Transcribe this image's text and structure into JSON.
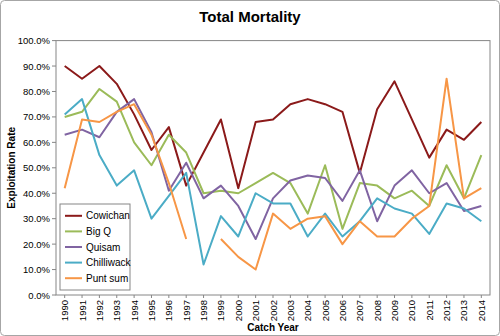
{
  "chart_data": {
    "type": "line",
    "title": "Total Mortality",
    "x_label": "Catch Year",
    "y_label": "Exploitation Rate",
    "categories": [
      "1990",
      "1991",
      "1992",
      "1993",
      "1994",
      "1995",
      "1996",
      "1997",
      "1998",
      "1999",
      "2000",
      "2001",
      "2002",
      "2003",
      "2004",
      "2005",
      "2006",
      "2007",
      "2008",
      "2009",
      "2010",
      "2011",
      "2012",
      "2013",
      "2014"
    ],
    "series": [
      {
        "name": "Cowichan",
        "color": "#8b1a1a",
        "values": [
          90,
          85,
          90,
          83,
          71,
          57,
          66,
          43,
          56,
          69,
          42,
          68,
          69,
          75,
          77,
          75,
          72,
          48,
          73,
          84,
          69,
          54,
          65,
          61,
          68
        ]
      },
      {
        "name": "Big Q",
        "color": "#9bbb59",
        "values": [
          70,
          72,
          81,
          76,
          60,
          51,
          63,
          56,
          40,
          41,
          40,
          44,
          48,
          44,
          32,
          51,
          26,
          44,
          43,
          38,
          41,
          35,
          51,
          38,
          55
        ]
      },
      {
        "name": "Quisam",
        "color": "#8064a2",
        "values": [
          63,
          65,
          62,
          72,
          77,
          64,
          41,
          52,
          38,
          43,
          35,
          22,
          38,
          45,
          47,
          46,
          37,
          49,
          29,
          43,
          49,
          40,
          44,
          33,
          35
        ]
      },
      {
        "name": "Chilliwack",
        "color": "#4bacc6",
        "values": [
          71,
          77,
          55,
          43,
          49,
          30,
          39,
          48,
          12,
          31,
          23,
          40,
          36,
          36,
          23,
          32,
          23,
          29,
          38,
          34,
          32,
          24,
          36,
          34,
          29
        ]
      },
      {
        "name": "Punt sum",
        "color": "#f79646",
        "values": [
          42,
          69,
          68,
          72,
          75,
          63,
          44,
          22,
          null,
          22,
          15,
          10,
          32,
          26,
          30,
          31,
          20,
          29,
          23,
          23,
          30,
          35,
          85,
          38,
          42
        ]
      }
    ],
    "ylim": [
      0,
      100
    ],
    "yticks": [
      {
        "value": 0,
        "label": "0.0%"
      },
      {
        "value": 10,
        "label": "10.0%"
      },
      {
        "value": 20,
        "label": "20.0%"
      },
      {
        "value": 30,
        "label": "30.0%"
      },
      {
        "value": 40,
        "label": "40.0%"
      },
      {
        "value": 50,
        "label": "50.0%"
      },
      {
        "value": 60,
        "label": "60.0%"
      },
      {
        "value": 70,
        "label": "70.0%"
      },
      {
        "value": 80,
        "label": "80.0%"
      },
      {
        "value": 90,
        "label": "90.0%"
      },
      {
        "value": 100,
        "label": "100.0%"
      }
    ],
    "grid": false,
    "legend": "bottom-left"
  }
}
